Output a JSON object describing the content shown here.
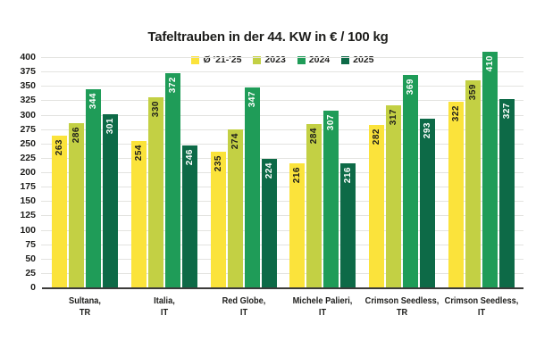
{
  "chart_data": {
    "type": "bar",
    "title": "Tafeltrauben in der 44. KW in € / 100 kg",
    "categories": [
      "Sultana, TR",
      "Italia, IT",
      "Red Globe, IT",
      "Michele Palieri, IT",
      "Crimson Seedless, TR",
      "Crimson Seedless, IT"
    ],
    "series": [
      {
        "name": "Ø '21-'25",
        "color": "#FBE33B",
        "label_color": "#1D1D1B",
        "values": [
          263,
          254,
          235,
          216,
          282,
          322
        ]
      },
      {
        "name": "2023",
        "color": "#C3D044",
        "label_color": "#1D1D1B",
        "values": [
          286,
          330,
          274,
          284,
          317,
          359
        ]
      },
      {
        "name": "2024",
        "color": "#1F9C58",
        "label_color": "#FFFFFF",
        "values": [
          344,
          372,
          347,
          307,
          369,
          410
        ]
      },
      {
        "name": "2025",
        "color": "#0D6A47",
        "label_color": "#FFFFFF",
        "values": [
          301,
          246,
          224,
          216,
          293,
          327
        ]
      }
    ],
    "ylim": [
      0,
      400
    ],
    "y_tick_step": 25,
    "y_ticks": [
      0,
      25,
      50,
      75,
      100,
      125,
      150,
      175,
      200,
      225,
      250,
      275,
      300,
      325,
      350,
      375,
      400
    ],
    "grid": true,
    "legend_position": "top-center",
    "value_label_style": "rotated-90-inside-top",
    "colors": {
      "background": "#FFFFFF",
      "text": "#1D1D1B",
      "gridline": "#E3E3E0",
      "axis_line": "#3B3B3A"
    }
  }
}
